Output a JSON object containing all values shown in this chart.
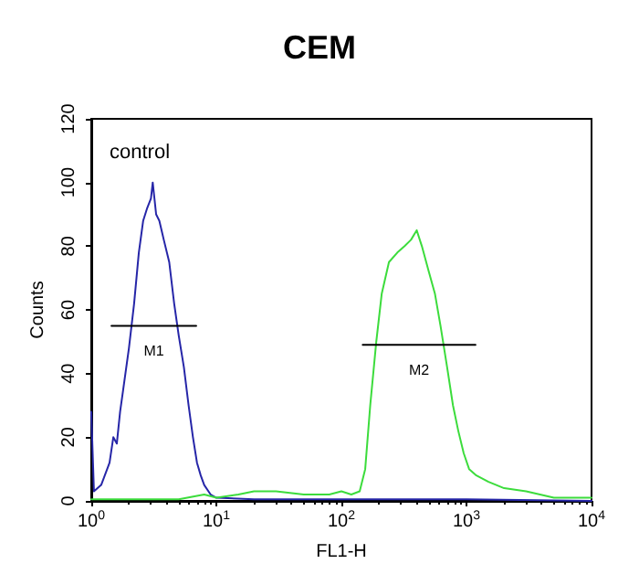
{
  "chart_data": {
    "type": "line",
    "title": "CEM",
    "xlabel": "FL1-H",
    "ylabel": "Counts",
    "log": "x",
    "grid": false,
    "marker": "none",
    "line_style": "solid",
    "xlim": [
      1,
      10000
    ],
    "xticks": [
      {
        "value": 1,
        "label": "10$^{0}$"
      },
      {
        "value": 10,
        "label": "10$^{1}$"
      },
      {
        "value": 100,
        "label": "10$^{2}$"
      },
      {
        "value": 1000,
        "label": "10$^{3}$"
      },
      {
        "value": 10000,
        "label": "10$^{4}$"
      }
    ],
    "ylim": [
      0,
      120
    ],
    "yticks": [
      0,
      20,
      40,
      60,
      80,
      100,
      120
    ],
    "annotations": [
      "control",
      "M1",
      "M2"
    ],
    "series": [
      {
        "color": "#2626a8",
        "x": [
          1,
          1.05,
          1.2,
          1.4,
          1.5,
          1.6,
          1.7,
          1.8,
          2,
          2.2,
          2.4,
          2.6,
          2.8,
          3,
          3.1,
          3.3,
          3.5,
          3.8,
          4.2,
          4.6,
          5,
          5.5,
          6,
          6.5,
          7,
          7.5,
          8,
          9,
          10,
          20,
          100,
          1000,
          10000
        ],
        "values": [
          28,
          3,
          5,
          12,
          20,
          18,
          28,
          35,
          48,
          62,
          78,
          88,
          92,
          95,
          100,
          90,
          88,
          82,
          75,
          62,
          52,
          42,
          30,
          20,
          12,
          8,
          5,
          2,
          1,
          0.5,
          0.5,
          0.5,
          0
        ]
      },
      {
        "color": "#3cdc3c",
        "x": [
          1,
          5,
          8,
          10,
          15,
          20,
          30,
          50,
          80,
          100,
          120,
          140,
          155,
          170,
          190,
          210,
          240,
          280,
          320,
          360,
          400,
          440,
          500,
          560,
          620,
          700,
          780,
          860,
          950,
          1050,
          1200,
          1500,
          2000,
          3000,
          5000,
          10000
        ],
        "values": [
          0.5,
          0.5,
          2,
          1,
          2,
          3,
          3,
          2,
          2,
          3,
          2,
          3,
          10,
          30,
          50,
          65,
          75,
          78,
          80,
          82,
          85,
          80,
          72,
          65,
          55,
          42,
          30,
          22,
          15,
          10,
          8,
          6,
          4,
          3,
          1,
          1
        ]
      },
      {
        "color": "#000000",
        "x": [
          1.45,
          6.9
        ],
        "values": [
          55,
          55
        ]
      },
      {
        "color": "#000000",
        "x": [
          148,
          1180
        ],
        "values": [
          49,
          49
        ]
      }
    ]
  }
}
